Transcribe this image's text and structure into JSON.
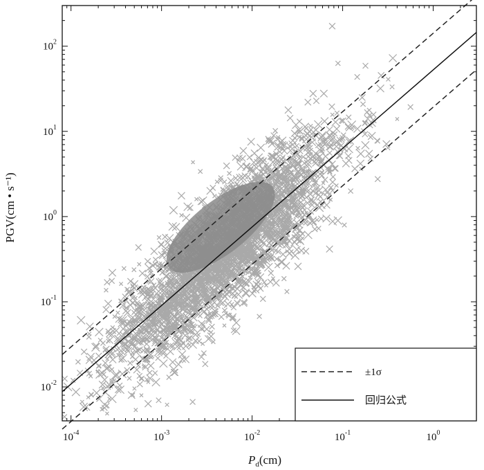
{
  "chart_data": {
    "type": "scatter",
    "x_scale": "log",
    "y_scale": "log",
    "xlim": [
      8e-05,
      3
    ],
    "ylim": [
      0.004,
      300
    ],
    "xlabel": {
      "main": "P",
      "sub": "d",
      "rest": "(cm)"
    },
    "ylabel": "PGV(cm • s⁻¹)",
    "x_ticks": [
      {
        "value": 0.0001,
        "base": "10",
        "exp": "-4"
      },
      {
        "value": 0.001,
        "base": "10",
        "exp": "-3"
      },
      {
        "value": 0.01,
        "base": "10",
        "exp": "-2"
      },
      {
        "value": 0.1,
        "base": "10",
        "exp": "-1"
      },
      {
        "value": 1,
        "base": "10",
        "exp": "0"
      }
    ],
    "y_ticks": [
      {
        "value": 0.01,
        "base": "10",
        "exp": "-2"
      },
      {
        "value": 0.1,
        "base": "10",
        "exp": "-1"
      },
      {
        "value": 1,
        "base": "10",
        "exp": "0"
      },
      {
        "value": 10,
        "base": "10",
        "exp": "1"
      },
      {
        "value": 100,
        "base": "10",
        "exp": "2"
      }
    ],
    "series": [
      {
        "name": "回归公式",
        "style": "solid",
        "x": [
          8e-05,
          3
        ],
        "y": [
          0.0088,
          145
        ]
      },
      {
        "name": "±1σ",
        "style": "dashed",
        "x": [
          8e-05,
          3
        ],
        "y": [
          0.024,
          390
        ]
      },
      {
        "name": "±1σ",
        "style": "dashed",
        "x": [
          8e-05,
          3
        ],
        "y": [
          0.0032,
          53
        ]
      }
    ],
    "scatter_cloud": {
      "marker": "x",
      "color": "#8c8c8c",
      "note_center_x": 0.005,
      "note_center_y": 1.0
    },
    "legend": {
      "position": "bottom-right",
      "entries": [
        {
          "style": "dashed",
          "label": "±1σ"
        },
        {
          "style": "solid",
          "label": "回归公式"
        }
      ]
    },
    "grid": false
  }
}
